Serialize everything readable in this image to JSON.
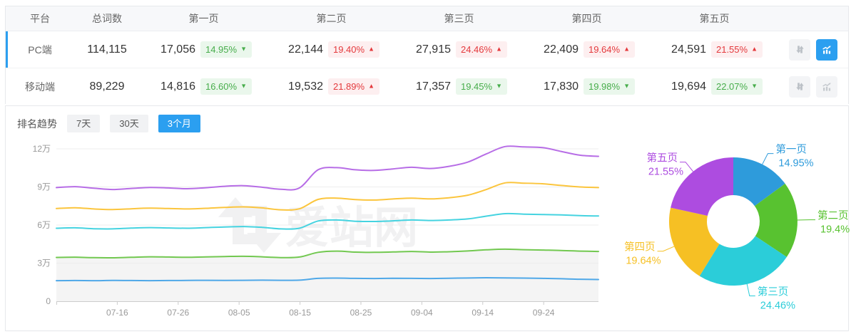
{
  "table": {
    "headers": [
      "平台",
      "总词数",
      "第一页",
      "第二页",
      "第三页",
      "第四页",
      "第五页"
    ],
    "rows": [
      {
        "platform": "PC端",
        "total": "114,115",
        "active": true,
        "chart_active": true,
        "pages": [
          {
            "count": "17,056",
            "pct": "14.95%",
            "dir": "down"
          },
          {
            "count": "22,144",
            "pct": "19.40%",
            "dir": "up"
          },
          {
            "count": "27,915",
            "pct": "24.46%",
            "dir": "up"
          },
          {
            "count": "22,409",
            "pct": "19.64%",
            "dir": "up"
          },
          {
            "count": "24,591",
            "pct": "21.55%",
            "dir": "up"
          }
        ]
      },
      {
        "platform": "移动端",
        "total": "89,229",
        "active": false,
        "chart_active": false,
        "pages": [
          {
            "count": "14,816",
            "pct": "16.60%",
            "dir": "down"
          },
          {
            "count": "19,532",
            "pct": "21.89%",
            "dir": "up"
          },
          {
            "count": "17,357",
            "pct": "19.45%",
            "dir": "down"
          },
          {
            "count": "17,830",
            "pct": "19.98%",
            "dir": "down"
          },
          {
            "count": "19,694",
            "pct": "22.07%",
            "dir": "down"
          }
        ]
      }
    ]
  },
  "trend": {
    "title": "排名趋势",
    "tabs": [
      {
        "label": "7天",
        "active": false
      },
      {
        "label": "30天",
        "active": false
      },
      {
        "label": "3个月",
        "active": true
      }
    ]
  },
  "watermark": "爱站网",
  "icons": {
    "sort": "sort-arrows-icon",
    "chart": "trend-chart-icon",
    "up_triangle": "▲",
    "down_triangle": "▼"
  },
  "colors": {
    "accent_blue": "#2b9ff0",
    "badge_up_text": "#e4393c",
    "badge_up_bg": "#fdeff0",
    "badge_down_text": "#47ad4b",
    "badge_down_bg": "#eaf7ec",
    "axis_text": "#999999",
    "grid_line": "#ededed",
    "axis_line": "#cccccc",
    "watermark": "#f1f1f2",
    "area_fill": "rgba(0,0,0,0.042)",
    "line_colors": [
      "#4fa8e8",
      "#72c850",
      "#45d3e0",
      "#fbc53d",
      "#b76de6"
    ],
    "pie_colors": [
      "#2e9bdb",
      "#58c230",
      "#2bcdd9",
      "#f6c024",
      "#ad4ce0"
    ]
  },
  "chart_data": [
    {
      "type": "line",
      "title": "排名趋势 3个月 (PC端, 累计词数, 单位: 万)",
      "x_ticks": [
        "07-16",
        "07-26",
        "08-05",
        "08-15",
        "08-25",
        "09-04",
        "09-14",
        "09-24"
      ],
      "x_total_days": 89,
      "tick_day_indices": [
        10,
        20,
        30,
        40,
        50,
        60,
        70,
        80
      ],
      "y_ticks": [
        "0",
        "3万",
        "6万",
        "9万",
        "12万"
      ],
      "y_tick_values": [
        0,
        3,
        6,
        9,
        12
      ],
      "ylim": [
        0,
        12.5
      ],
      "grid": true,
      "area_under_series": 1,
      "series": [
        {
          "name": "第一页",
          "values": [
            1.62,
            1.63,
            1.62,
            1.64,
            1.63,
            1.62,
            1.63,
            1.64,
            1.65,
            1.64,
            1.65,
            1.66,
            1.65,
            1.66,
            1.8,
            1.82,
            1.8,
            1.79,
            1.81,
            1.8,
            1.79,
            1.81,
            1.83,
            1.85,
            1.84,
            1.82,
            1.8,
            1.77,
            1.73,
            1.71
          ]
        },
        {
          "name": "第二页",
          "values": [
            3.45,
            3.47,
            3.43,
            3.42,
            3.46,
            3.5,
            3.48,
            3.46,
            3.49,
            3.52,
            3.54,
            3.5,
            3.44,
            3.48,
            3.85,
            3.95,
            3.87,
            3.85,
            3.88,
            3.92,
            3.87,
            3.9,
            3.96,
            4.05,
            4.1,
            4.06,
            4.03,
            4.0,
            3.95,
            3.92
          ]
        },
        {
          "name": "第三页",
          "values": [
            5.75,
            5.78,
            5.71,
            5.7,
            5.76,
            5.8,
            5.77,
            5.75,
            5.8,
            5.85,
            5.88,
            5.82,
            5.7,
            5.75,
            6.32,
            6.4,
            6.3,
            6.28,
            6.33,
            6.4,
            6.36,
            6.4,
            6.48,
            6.7,
            6.9,
            6.86,
            6.83,
            6.8,
            6.74,
            6.71
          ]
        },
        {
          "name": "第四页",
          "values": [
            7.3,
            7.36,
            7.27,
            7.22,
            7.28,
            7.33,
            7.3,
            7.27,
            7.32,
            7.39,
            7.43,
            7.35,
            7.2,
            7.28,
            8.02,
            8.12,
            8.0,
            7.97,
            8.05,
            8.12,
            8.06,
            8.15,
            8.35,
            8.8,
            9.32,
            9.3,
            9.25,
            9.12,
            9.0,
            8.95
          ]
        },
        {
          "name": "第五页",
          "values": [
            8.95,
            9.02,
            8.9,
            8.8,
            8.88,
            8.96,
            8.92,
            8.86,
            8.94,
            9.05,
            9.1,
            8.98,
            8.82,
            8.92,
            10.35,
            10.52,
            10.35,
            10.3,
            10.42,
            10.55,
            10.45,
            10.62,
            10.95,
            11.6,
            12.18,
            12.15,
            12.1,
            11.8,
            11.5,
            11.41
          ]
        }
      ]
    },
    {
      "type": "pie",
      "donut": true,
      "labels": [
        "第一页",
        "第二页",
        "第三页",
        "第四页",
        "第五页"
      ],
      "values": [
        14.95,
        19.4,
        24.46,
        19.64,
        21.55
      ],
      "display": [
        "14.95%",
        "19.4%",
        "24.46%",
        "19.64%",
        "21.55%"
      ],
      "start_angle_deg": 0,
      "clockwise": true,
      "legend_position": "outside-labels"
    }
  ]
}
